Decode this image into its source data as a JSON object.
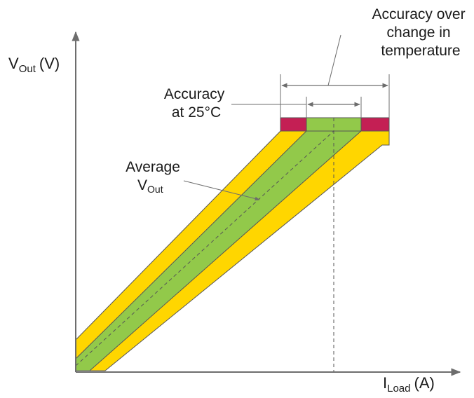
{
  "axes": {
    "y_label": "V",
    "y_label_sub": "Out",
    "y_label_unit": "(V)",
    "x_label": "I",
    "x_label_sub": "Load",
    "x_label_unit": "(A)"
  },
  "annotations": {
    "accuracy_over_temp": [
      "Accuracy over",
      "change in",
      "temperature"
    ],
    "accuracy_25c": [
      "Accuracy",
      "at 25°C"
    ],
    "average_vout": {
      "line1": "Average",
      "line2_main": "V",
      "line2_sub": "Out"
    }
  },
  "colors": {
    "outer_band": "#ffd600",
    "inner_band": "#92c94a",
    "temp_marker": "#c41f54",
    "band_edge": "#555555",
    "axis": "#555555"
  }
}
